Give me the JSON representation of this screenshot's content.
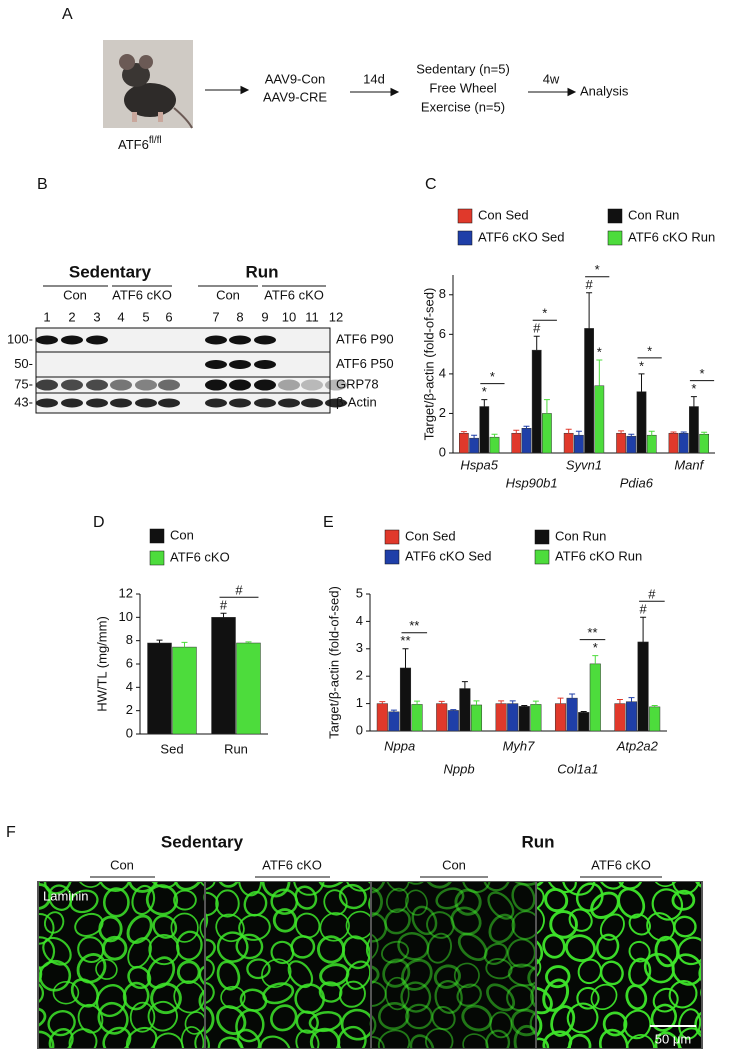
{
  "panel_a": {
    "label": "A",
    "mouse_label": {
      "main": "ATF6",
      "superscript": "fl/fl"
    },
    "step1": [
      "AAV9-Con",
      "AAV9-CRE"
    ],
    "arrow1": "14d",
    "step2": [
      "Sedentary (n=5)",
      "Free Wheel",
      "Exercise (n=5)"
    ],
    "arrow2": "4w",
    "step3": "Analysis"
  },
  "panel_b": {
    "label": "B",
    "groups": [
      {
        "title": "Sedentary",
        "subgroups": [
          "Con",
          "ATF6 cKO"
        ]
      },
      {
        "title": "Run",
        "subgroups": [
          "Con",
          "ATF6 cKO"
        ]
      }
    ],
    "lanes": [
      1,
      2,
      3,
      4,
      5,
      6,
      7,
      8,
      9,
      10,
      11,
      12
    ],
    "rows": [
      {
        "mw": "100-",
        "name": "ATF6 P90"
      },
      {
        "mw": "50-",
        "name": "ATF6 P50"
      },
      {
        "mw": "75-",
        "name": "GRP78"
      },
      {
        "mw": "43-",
        "name": "β-Actin"
      }
    ]
  },
  "chart_data": [
    {
      "type": "bar",
      "panel_label": "C",
      "ylabel": "Target/β-actin (fold-of-sed)",
      "italic_categories": true,
      "categories": [
        "Hspa5",
        "Hsp90b1",
        "Syvn1",
        "Pdia6",
        "Manf"
      ],
      "series": [
        {
          "name": "Con Sed",
          "color": "#e0392b",
          "values": [
            1,
            1,
            1,
            1,
            1
          ],
          "errors": [
            0.08,
            0.15,
            0.2,
            0.12,
            0.06
          ]
        },
        {
          "name": "ATF6 cKO Sed",
          "color": "#1f3fa8",
          "values": [
            0.75,
            1.25,
            0.9,
            0.85,
            1.0
          ],
          "errors": [
            0.15,
            0.1,
            0.2,
            0.1,
            0.06
          ]
        },
        {
          "name": "Con Run",
          "color": "#111111",
          "values": [
            2.35,
            5.2,
            6.3,
            3.1,
            2.35
          ],
          "errors": [
            0.35,
            0.7,
            1.8,
            0.9,
            0.5
          ],
          "markers": [
            "*",
            "#",
            "#",
            "*",
            "*"
          ]
        },
        {
          "name": "ATF6 cKO Run",
          "color": "#4ddc3c",
          "values": [
            0.8,
            2.0,
            3.4,
            0.9,
            0.95
          ],
          "errors": [
            0.15,
            0.7,
            1.3,
            0.2,
            0.1
          ],
          "markers": [
            null,
            null,
            "*",
            null,
            null
          ]
        }
      ],
      "comparisons": [
        "*",
        "*",
        "*",
        "*",
        "*"
      ],
      "ylim": [
        0,
        9
      ],
      "yticks": [
        0,
        2,
        4,
        6,
        8
      ]
    },
    {
      "type": "bar",
      "panel_label": "D",
      "ylabel": "HW/TL (mg/mm)",
      "italic_categories": false,
      "categories": [
        "Sed",
        "Run"
      ],
      "series": [
        {
          "name": "Con",
          "color": "#111111",
          "values": [
            7.8,
            10.0
          ],
          "errors": [
            0.25,
            0.35
          ],
          "markers": [
            null,
            "#"
          ]
        },
        {
          "name": "ATF6 cKO",
          "color": "#4ddc3c",
          "values": [
            7.45,
            7.8
          ],
          "errors": [
            0.4,
            0.1
          ]
        }
      ],
      "comparisons": [
        null,
        "#"
      ],
      "ylim": [
        0,
        12
      ],
      "yticks": [
        0,
        2,
        4,
        6,
        8,
        10,
        12
      ]
    },
    {
      "type": "bar",
      "panel_label": "E",
      "ylabel": "Target/β-actin (fold-of-sed)",
      "italic_categories": true,
      "categories": [
        "Nppa",
        "Nppb",
        "Myh7",
        "Col1a1",
        "Atp2a2"
      ],
      "series": [
        {
          "name": "Con Sed",
          "color": "#e0392b",
          "values": [
            1.0,
            1.0,
            1.0,
            1.0,
            1.0
          ],
          "errors": [
            0.07,
            0.08,
            0.1,
            0.2,
            0.15
          ]
        },
        {
          "name": "ATF6 cKO Sed",
          "color": "#1f3fa8",
          "values": [
            0.7,
            0.75,
            1.0,
            1.2,
            1.07
          ],
          "errors": [
            0.06,
            0.03,
            0.1,
            0.15,
            0.15
          ]
        },
        {
          "name": "Con Run",
          "color": "#111111",
          "values": [
            2.3,
            1.55,
            0.9,
            0.68,
            3.25
          ],
          "errors": [
            0.7,
            0.25,
            0.03,
            0.03,
            0.9
          ],
          "markers": [
            "**",
            null,
            null,
            null,
            "#"
          ]
        },
        {
          "name": "ATF6 cKO Run",
          "color": "#4ddc3c",
          "values": [
            0.97,
            0.95,
            0.97,
            2.45,
            0.88
          ],
          "errors": [
            0.12,
            0.15,
            0.12,
            0.3,
            0.05
          ],
          "markers": [
            null,
            null,
            null,
            "*",
            null
          ]
        }
      ],
      "comparisons": [
        "**",
        null,
        null,
        "**",
        "#"
      ],
      "ylim": [
        0,
        5
      ],
      "yticks": [
        0,
        1,
        2,
        3,
        4,
        5
      ]
    }
  ],
  "panel_f": {
    "label": "F",
    "groups": [
      {
        "title": "Sedentary",
        "subgroups": [
          "Con",
          "ATF6 cKO"
        ]
      },
      {
        "title": "Run",
        "subgroups": [
          "Con",
          "ATF6 cKO"
        ]
      }
    ],
    "stain": "Laminin",
    "scale_bar": "50 μm"
  }
}
